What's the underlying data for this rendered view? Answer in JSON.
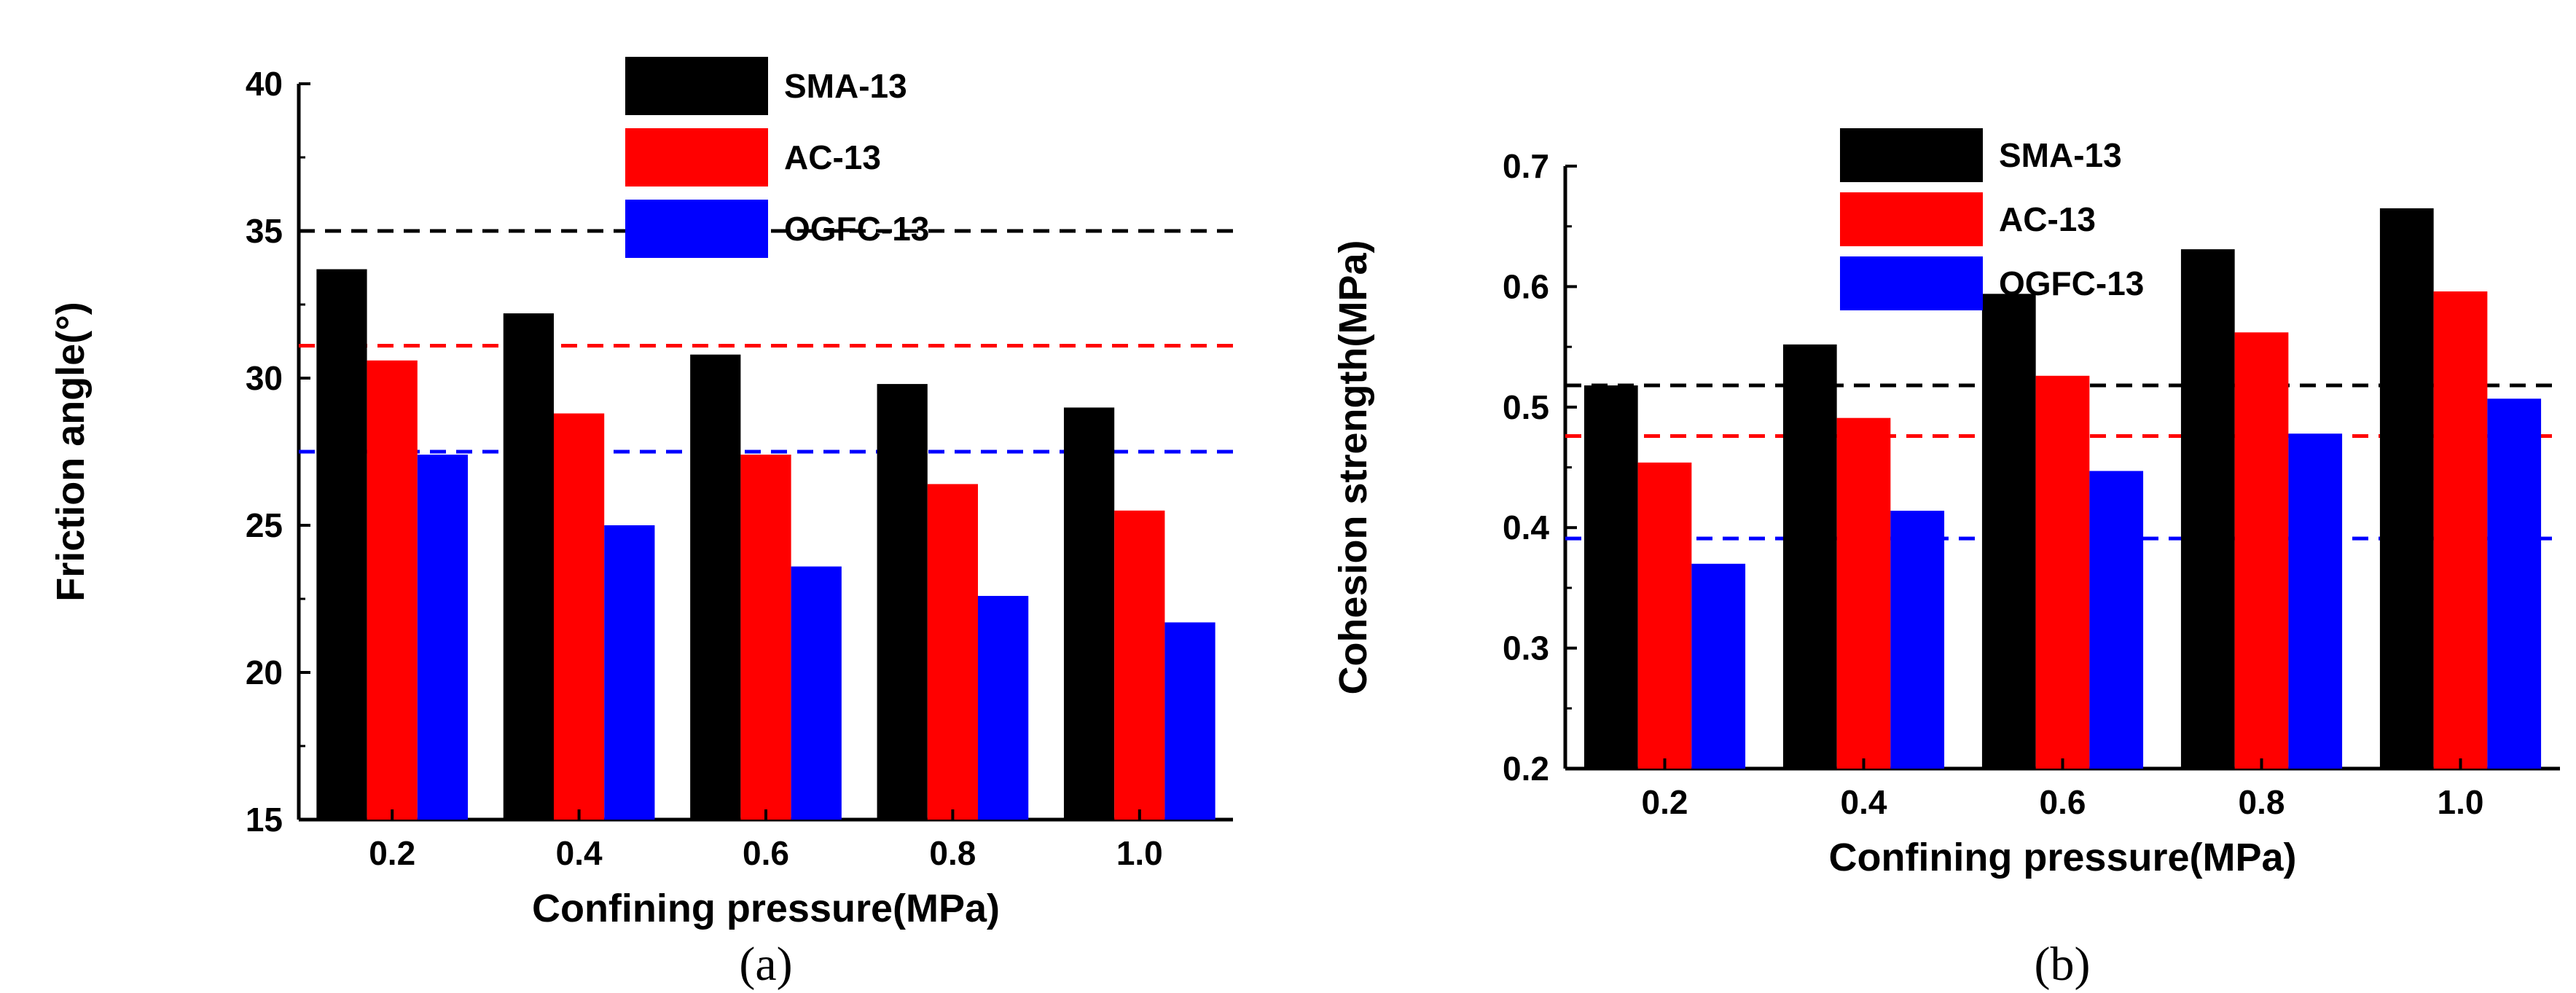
{
  "chart_data": [
    {
      "type": "bar",
      "panel_label": "(a)",
      "title": "",
      "xlabel": "Confining pressure(MPa)",
      "ylabel": "Friction angle(°)",
      "ylim": [
        15,
        40
      ],
      "yticks": [
        "15",
        "20",
        "25",
        "30",
        "35",
        "40"
      ],
      "categories": [
        "0.2",
        "0.4",
        "0.6",
        "0.8",
        "1.0"
      ],
      "series": [
        {
          "name": "SMA-13",
          "color": "#000000",
          "values": [
            33.7,
            32.2,
            30.8,
            29.8,
            29.0
          ]
        },
        {
          "name": "AC-13",
          "color": "#ff0000",
          "values": [
            30.6,
            28.8,
            27.4,
            26.4,
            25.5
          ]
        },
        {
          "name": "OGFC-13",
          "color": "#0000ff",
          "values": [
            27.4,
            25.0,
            23.6,
            22.6,
            21.7
          ]
        }
      ],
      "reference_lines": [
        {
          "series": "SMA-13",
          "value": 35.0,
          "color": "#000000"
        },
        {
          "series": "AC-13",
          "value": 31.1,
          "color": "#ff0000"
        },
        {
          "series": "OGFC-13",
          "value": 27.5,
          "color": "#0000ff"
        }
      ],
      "legend_position": "top-center"
    },
    {
      "type": "bar",
      "panel_label": "(b)",
      "title": "",
      "xlabel": "Confining pressure(MPa)",
      "ylabel": "Cohesion strength(MPa)",
      "ylim": [
        0.2,
        0.7
      ],
      "yticks": [
        "0.2",
        "0.3",
        "0.4",
        "0.5",
        "0.6",
        "0.7"
      ],
      "categories": [
        "0.2",
        "0.4",
        "0.6",
        "0.8",
        "1.0"
      ],
      "series": [
        {
          "name": "SMA-13",
          "color": "#000000",
          "values": [
            0.518,
            0.552,
            0.594,
            0.631,
            0.665
          ]
        },
        {
          "name": "AC-13",
          "color": "#ff0000",
          "values": [
            0.454,
            0.491,
            0.526,
            0.562,
            0.596
          ]
        },
        {
          "name": "OGFC-13",
          "color": "#0000ff",
          "values": [
            0.37,
            0.414,
            0.447,
            0.478,
            0.507
          ]
        }
      ],
      "reference_lines": [
        {
          "series": "SMA-13",
          "value": 0.518,
          "color": "#000000"
        },
        {
          "series": "AC-13",
          "value": 0.476,
          "color": "#ff0000"
        },
        {
          "series": "OGFC-13",
          "value": 0.391,
          "color": "#0000ff"
        }
      ],
      "legend_position": "top-center"
    }
  ]
}
